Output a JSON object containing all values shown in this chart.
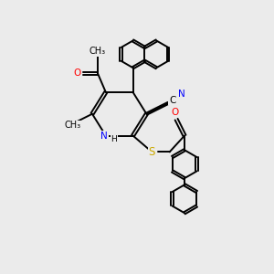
{
  "background_color": "#ebebeb",
  "atom_colors": {
    "N": "#0000ff",
    "O": "#ff0000",
    "S": "#ccaa00",
    "C": "#000000",
    "H": "#000000"
  },
  "bond_lw": 1.4,
  "font_size": 7.5,
  "bg": "#ebebeb"
}
